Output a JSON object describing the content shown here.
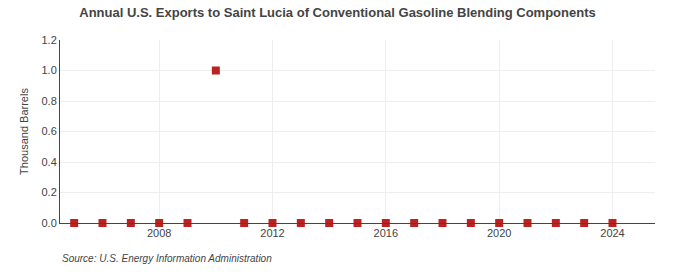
{
  "chart_data": {
    "type": "scatter",
    "title": "Annual U.S. Exports to Saint Lucia of Conventional Gasoline Blending Components",
    "ylabel": "Thousand Barrels",
    "annotations": [
      "Source: U.S. Energy Information Administration"
    ],
    "x": [
      2005,
      2006,
      2007,
      2008,
      2009,
      2010,
      2011,
      2012,
      2013,
      2014,
      2015,
      2016,
      2017,
      2018,
      2019,
      2020,
      2021,
      2022,
      2023,
      2024
    ],
    "values": [
      0,
      0,
      0,
      0,
      0,
      1,
      0,
      0,
      0,
      0,
      0,
      0,
      0,
      0,
      0,
      0,
      0,
      0,
      0,
      0
    ],
    "color": "#bb2222",
    "marker": "square",
    "xlim": [
      2004.5,
      2025.5
    ],
    "xticks": [
      2008,
      2012,
      2016,
      2020,
      2024
    ],
    "ylim": [
      0,
      1.2
    ],
    "yticks": [
      {
        "value": 0.0,
        "label": "0.0"
      },
      {
        "value": 0.2,
        "label": "0.2"
      },
      {
        "value": 0.4,
        "label": "0.4"
      },
      {
        "value": 0.6,
        "label": "0.6"
      },
      {
        "value": 0.8,
        "label": "0.8"
      },
      {
        "value": 1.0,
        "label": "1.0"
      },
      {
        "value": 1.2,
        "label": "1.2"
      }
    ],
    "grid": true
  }
}
